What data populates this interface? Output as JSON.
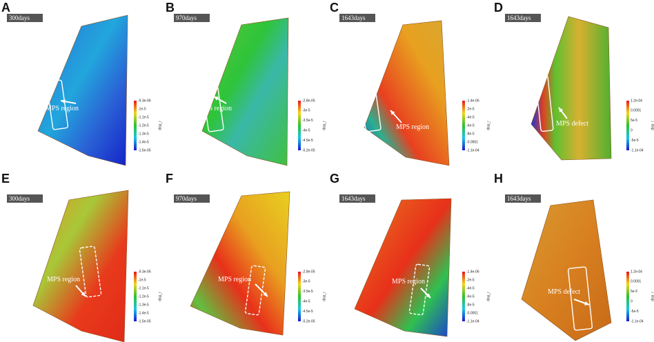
{
  "panels": [
    {
      "letter": "A",
      "days": "300days",
      "annotation": "MPS region",
      "colorbar": {
        "title": "disp_r",
        "labels": [
          "-9.3e-06",
          "-1e-5",
          "-1.1e-5",
          "-1.2e-5",
          "-1.3e-5",
          "-1.4e-5",
          "-1.5e-05"
        ]
      }
    },
    {
      "letter": "B",
      "days": "970days",
      "annotation": "MPS region",
      "colorbar": {
        "title": "disp_r",
        "labels": [
          "-2.8e-05",
          "-3e-5",
          "-3.5e-5",
          "-4e-5",
          "-4.5e-5",
          "-5.2e-05"
        ]
      }
    },
    {
      "letter": "C",
      "days": "1643days",
      "annotation": "MPS region",
      "colorbar": {
        "title": "disp_r",
        "labels": [
          "-1.4e-06",
          "-2e-5",
          "-4e-5",
          "-6e-5",
          "-8e-5",
          "-0.0001",
          "-1.1e-04"
        ]
      }
    },
    {
      "letter": "D",
      "days": "1643days",
      "annotation": "MPS defect",
      "colorbar": {
        "title": "disp_r",
        "labels": [
          "1.2e-04",
          "0.0001",
          "5e-5",
          "0",
          "-5e-5",
          "-1.1e-04"
        ]
      }
    },
    {
      "letter": "E",
      "days": "300days",
      "annotation": "MPS region",
      "colorbar": {
        "title": "disp_r",
        "labels": [
          "-9.3e-06",
          "-1e-5",
          "-1.1e-5",
          "-1.2e-5",
          "-1.3e-5",
          "-1.4e-5",
          "-1.5e-05"
        ]
      }
    },
    {
      "letter": "F",
      "days": "970days",
      "annotation": "MPS region",
      "colorbar": {
        "title": "disp_r",
        "labels": [
          "-2.8e-05",
          "-3e-5",
          "-3.5e-5",
          "-4e-5",
          "-4.5e-5",
          "-5.2e-05"
        ]
      }
    },
    {
      "letter": "G",
      "days": "1643days",
      "annotation": "MPS region",
      "colorbar": {
        "title": "disp_r",
        "labels": [
          "-1.4e-06",
          "-2e-5",
          "-4e-5",
          "-6e-5",
          "-8e-5",
          "-0.0001",
          "-1.1e-04"
        ]
      }
    },
    {
      "letter": "H",
      "days": "1643days",
      "annotation": "MPS defect",
      "colorbar": {
        "title": "disp_r",
        "labels": [
          "1.2e-04",
          "0.0001",
          "5e-5",
          "0",
          "-5e-5",
          "-1.1e-04"
        ]
      }
    }
  ]
}
